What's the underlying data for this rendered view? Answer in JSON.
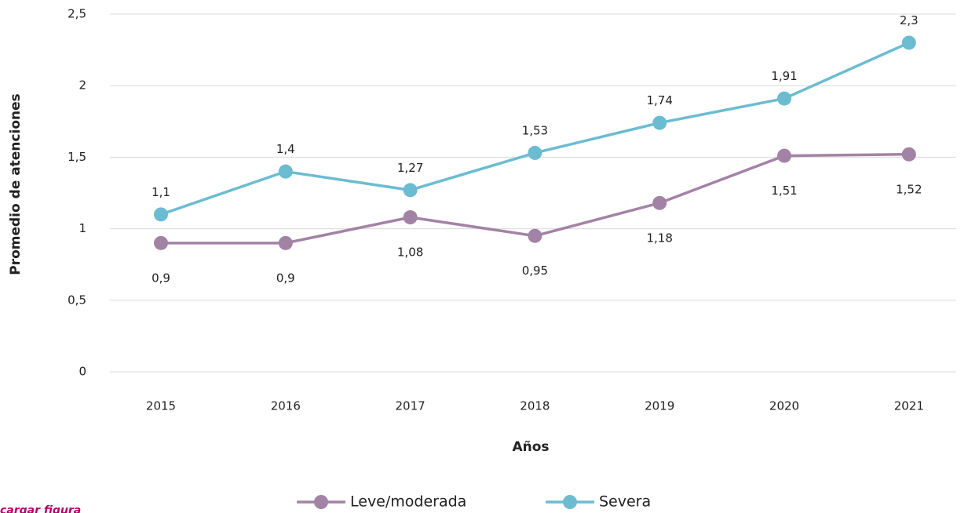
{
  "chart_data": {
    "type": "line",
    "y_label": "Promedio de atenciones",
    "x_label": "Años",
    "annotation": "cargar figura",
    "categories": [
      "2015",
      "2016",
      "2017",
      "2018",
      "2019",
      "2020",
      "2021"
    ],
    "series": [
      {
        "name": "Leve/moderada",
        "color": "#a383a5",
        "label_side": "below",
        "values": [
          0.9,
          0.9,
          1.08,
          0.95,
          1.18,
          1.51,
          1.52
        ],
        "value_labels": [
          "0,9",
          "0,9",
          "1,08",
          "0,95",
          "1,18",
          "1,51",
          "1,52"
        ]
      },
      {
        "name": "Severa",
        "color": "#6cbcd1",
        "label_side": "above",
        "values": [
          1.1,
          1.4,
          1.27,
          1.53,
          1.74,
          1.91,
          2.3
        ],
        "value_labels": [
          "1,1",
          "1,4",
          "1,27",
          "1,53",
          "1,74",
          "1,91",
          "2,3"
        ]
      }
    ],
    "ylim": [
      0,
      2.5
    ],
    "yticks": [
      0,
      {
        "value": 0.5,
        "label": "0,5"
      },
      1,
      {
        "value": 1.5,
        "label": "1,5"
      },
      2,
      {
        "value": 2.5,
        "label": "2,5"
      }
    ],
    "grid": true,
    "legend": "bottom"
  }
}
